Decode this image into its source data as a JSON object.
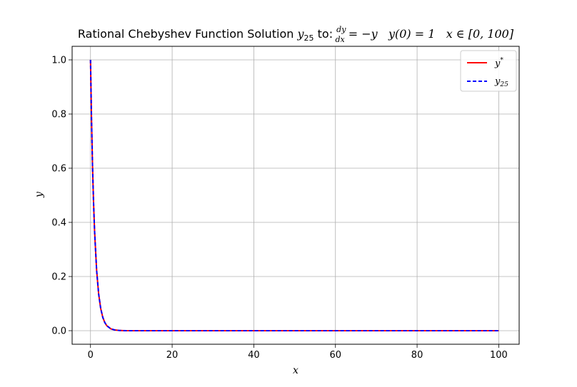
{
  "chart_data": {
    "type": "line",
    "title": {
      "prefix": "Rational Chebyshev Function Solution ",
      "y_symbol": "y",
      "y_subscript": "25",
      "to": " to: ",
      "frac_num": "dy",
      "frac_den": "dx",
      "equation": " = −y   y(0) = 1   x ∈ [0, 100]"
    },
    "xlabel": "x",
    "ylabel": "y",
    "xlim": [
      -4.5,
      105
    ],
    "ylim": [
      -0.05,
      1.05
    ],
    "xticks": [
      0,
      20,
      40,
      60,
      80,
      100
    ],
    "yticks": [
      0.0,
      0.2,
      0.4,
      0.6,
      0.8,
      1.0
    ],
    "ytick_labels": [
      "0.0",
      "0.2",
      "0.4",
      "0.6",
      "0.8",
      "1.0"
    ],
    "grid": true,
    "legend_position": "top-right",
    "series": [
      {
        "name_symbol": "y",
        "name_sup": "*",
        "color": "#ff0000",
        "style": "solid",
        "x": [
          0,
          0.25,
          0.5,
          0.75,
          1,
          1.5,
          2,
          2.5,
          3,
          3.5,
          4,
          5,
          6,
          7,
          8,
          10,
          15,
          20,
          30,
          40,
          50,
          60,
          70,
          80,
          90,
          100
        ],
        "y": [
          1.0,
          0.7788,
          0.6065,
          0.4724,
          0.3679,
          0.2231,
          0.1353,
          0.0821,
          0.0498,
          0.0302,
          0.0183,
          0.0067,
          0.0025,
          0.0009,
          0.0003,
          0.0,
          0.0,
          0.0,
          0.0,
          0.0,
          0.0,
          0.0,
          0.0,
          0.0,
          0.0,
          0.0
        ]
      },
      {
        "name_symbol": "y",
        "name_sub": "25",
        "color": "#0000ff",
        "style": "dashed",
        "x": [
          0,
          0.25,
          0.5,
          0.75,
          1,
          1.5,
          2,
          2.5,
          3,
          3.5,
          4,
          5,
          6,
          7,
          8,
          10,
          15,
          20,
          30,
          40,
          50,
          60,
          70,
          80,
          90,
          100
        ],
        "y": [
          1.0,
          0.7788,
          0.6065,
          0.4724,
          0.3679,
          0.2231,
          0.1353,
          0.0821,
          0.0498,
          0.0302,
          0.0183,
          0.0067,
          0.0025,
          0.0009,
          0.0003,
          0.0,
          0.0,
          0.0,
          0.0,
          0.0,
          0.0,
          0.0,
          0.0,
          0.0,
          0.0,
          0.0
        ]
      }
    ]
  }
}
